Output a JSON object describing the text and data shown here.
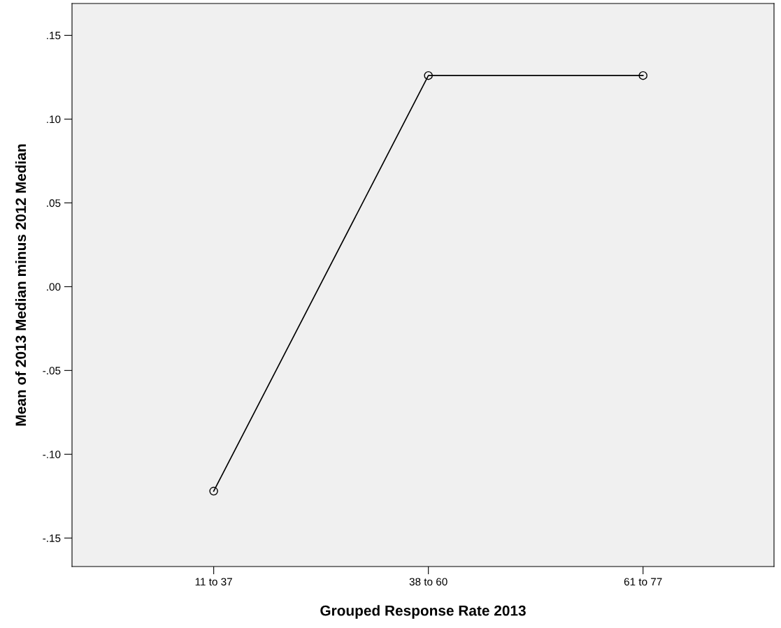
{
  "chart_data": {
    "type": "line",
    "xlabel": "Grouped Response Rate 2013",
    "ylabel": "Mean of 2013 Median minus 2012 Median",
    "categories": [
      "11 to 37",
      "38 to 60",
      "61 to 77"
    ],
    "series": [
      {
        "color": "#000000",
        "values": [
          -0.122,
          0.126,
          0.126
        ]
      }
    ],
    "ylim": [
      -0.167,
      0.169
    ],
    "yticks": [
      {
        "value": -0.15,
        "label": "-.15"
      },
      {
        "value": -0.1,
        "label": "-.10"
      },
      {
        "value": -0.05,
        "label": "-.05"
      },
      {
        "value": 0,
        "label": ".00"
      },
      {
        "value": 0.05,
        "label": ".05"
      },
      {
        "value": 0.1,
        "label": ".10"
      },
      {
        "value": 0.15,
        "label": ".15"
      }
    ],
    "grid": false,
    "legend": false,
    "marker": "circle",
    "line_style": "solid"
  }
}
